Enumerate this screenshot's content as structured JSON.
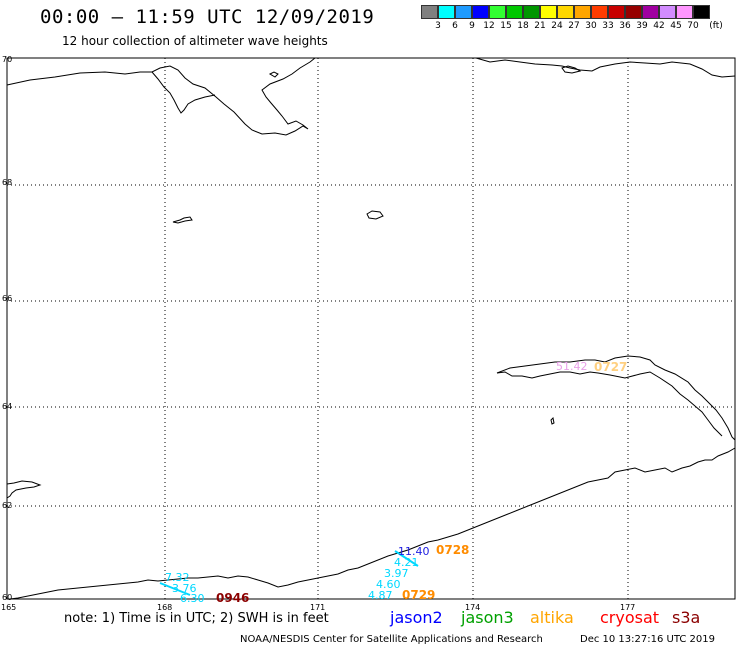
{
  "header": {
    "title": "00:00 – 11:59 UTC 12/09/2019",
    "subtitle": "12 hour collection of altimeter wave heights"
  },
  "colorbar": {
    "unit": "(ft)",
    "colors": [
      "#808080",
      "#00ffff",
      "#1e9bff",
      "#0000ff",
      "#32ff32",
      "#00c800",
      "#009600",
      "#ffff00",
      "#ffd700",
      "#ffa500",
      "#ff3c00",
      "#c80000",
      "#960000",
      "#a000a0",
      "#d28cff",
      "#ff96ff",
      "#000000"
    ],
    "labels": [
      "3",
      "6",
      "9",
      "12",
      "15",
      "18",
      "21",
      "24",
      "27",
      "30",
      "33",
      "36",
      "39",
      "42",
      "45",
      "70"
    ]
  },
  "map": {
    "lat_labels": [
      "70",
      "68",
      "66",
      "64",
      "62",
      "60"
    ],
    "lon_labels": [
      "165",
      "168",
      "171",
      "174",
      "177"
    ]
  },
  "tracks": [
    {
      "id": "t1",
      "values": [
        "7.32",
        "3.76",
        "6.30"
      ],
      "color": "#00d8ff",
      "time": "0946",
      "time_color": "#8b0000"
    },
    {
      "id": "t2",
      "values": [
        "11.40",
        "4.21",
        "3.97",
        "4.60",
        "4.87"
      ],
      "colors": [
        "#1e1ee0",
        "#00d8ff",
        "#00d8ff",
        "#00d8ff",
        "#00d8ff"
      ],
      "times": [
        "0728",
        "0729"
      ],
      "time_color": "#ff8c00"
    },
    {
      "id": "t3",
      "values": [
        "51.42"
      ],
      "color": "#e8a0e8",
      "time": "0727",
      "time_color": "#ffd080"
    }
  ],
  "footer": {
    "note": "note: 1) Time is in UTC; 2) SWH is in feet",
    "legend": [
      {
        "name": "jason2",
        "color": "#0000ff"
      },
      {
        "name": "jason3",
        "color": "#00a000"
      },
      {
        "name": "altika",
        "color": "#ffa500"
      },
      {
        "name": "cryosat",
        "color": "#ff0000"
      },
      {
        "name": "s3a",
        "color": "#8b0000"
      }
    ],
    "credit": "NOAA/NESDIS Center for Satellite Applications and Research",
    "timestamp": "Dec 10 13:27:16 UTC 2019"
  }
}
